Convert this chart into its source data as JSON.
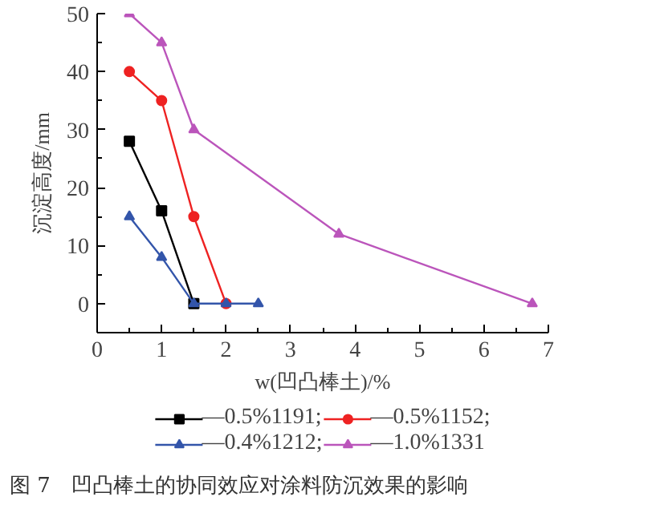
{
  "chart_data": {
    "type": "line",
    "title": "图 7　凹凸棒土的协同效应对涂料防沉效果的影响",
    "xlabel": "w(凹凸棒土)/%",
    "ylabel": "沉淀高度/mm",
    "xlim": [
      0,
      7
    ],
    "ylim": [
      -5,
      50
    ],
    "xticks": [
      0,
      1,
      2,
      3,
      4,
      5,
      6,
      7
    ],
    "yticks": [
      0,
      10,
      20,
      30,
      40,
      50
    ],
    "grid": false,
    "legend": "bottom",
    "series": [
      {
        "name": "—0.5%1191;",
        "color": "#000000",
        "marker": "square",
        "x": [
          0.5,
          1,
          1.5
        ],
        "values": [
          28,
          16,
          0
        ]
      },
      {
        "name": "—0.5%1152;",
        "color": "#ee2222",
        "marker": "circle",
        "x": [
          0.5,
          1,
          1.5,
          2
        ],
        "values": [
          40,
          35,
          15,
          0
        ]
      },
      {
        "name": "—0.4%1212;",
        "color": "#3355aa",
        "marker": "triangle",
        "x": [
          0.5,
          1,
          1.5,
          2,
          2.5
        ],
        "values": [
          15,
          8,
          0,
          0,
          0
        ]
      },
      {
        "name": "—1.0%1331",
        "color": "#bb55bb",
        "marker": "triangle",
        "x": [
          0.5,
          1,
          1.5,
          3.75,
          6.75
        ],
        "values": [
          50,
          45,
          30,
          12,
          0
        ]
      }
    ]
  }
}
